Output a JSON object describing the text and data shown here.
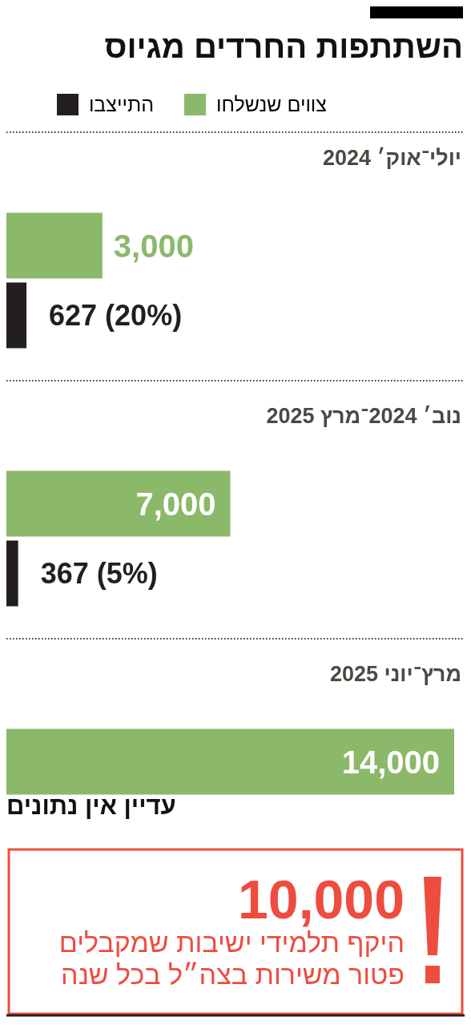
{
  "chart_data": {
    "type": "bar",
    "orientation": "horizontal",
    "title": "השתתפות החרדים מגיוס",
    "categories": [
      "יולי־אוק׳ 2024",
      "נוב׳ 2024־מרץ 2025",
      "מרץ־יוני 2025"
    ],
    "series": [
      {
        "name": "צווים שנשלחו",
        "color": "#8cb86a",
        "values": [
          3000,
          7000,
          14000
        ],
        "value_labels": [
          "3,000",
          "7,000",
          "14,000"
        ]
      },
      {
        "name": "התייצבו",
        "color": "#231f20",
        "values": [
          627,
          367,
          null
        ],
        "value_labels": [
          "627 (20%)",
          "367 (5%)",
          null
        ]
      }
    ],
    "xlim": [
      0,
      14000
    ],
    "tick_labels": "y",
    "legend": "top",
    "annotations": [
      "עדיין אין נתונים",
      "10,000",
      "היקף תלמידי ישיבות שמקבלים פטור משירות בצה״ל בכל שנה"
    ]
  }
}
